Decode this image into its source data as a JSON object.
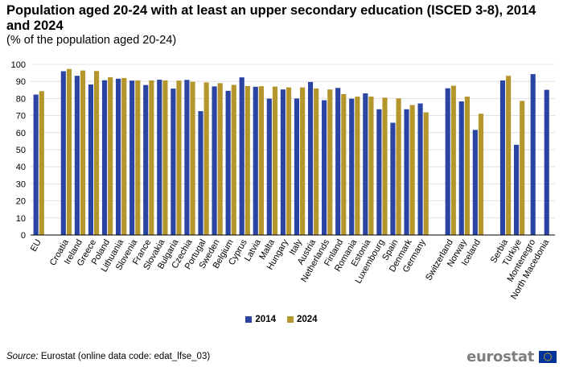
{
  "title": "Population aged 20-24 with at least an upper secondary education (ISCED 3-8), 2014 and 2024",
  "subtitle": "(% of the population aged 20-24)",
  "source_label": "Source:",
  "source_text": " Eurostat (online data code: edat_lfse_03)",
  "logo_text": "eurostat",
  "colors": {
    "series_2014": "#2a44a4",
    "series_2024": "#b5962c",
    "grid": "#d9d9d9"
  },
  "chart_data": {
    "type": "bar",
    "categories": [
      "EU",
      "Croatia",
      "Ireland",
      "Greece",
      "Poland",
      "Lithuania",
      "Slovenia",
      "France",
      "Slovakia",
      "Bulgaria",
      "Czechia",
      "Portugal",
      "Sweden",
      "Belgium",
      "Cyprus",
      "Latvia",
      "Malta",
      "Hungary",
      "Italy",
      "Austria",
      "Netherlands",
      "Finland",
      "Romania",
      "Estonia",
      "Luxembourg",
      "Spain",
      "Denmark",
      "Germany",
      "Switzerland",
      "Norway",
      "Iceland",
      "Serbia",
      "Türkiye",
      "Montenegro",
      "North Macedonia"
    ],
    "groups": [
      1,
      27,
      3,
      4
    ],
    "series": [
      {
        "name": "2014",
        "color": "#2a44a4",
        "values": [
          82.3,
          96.0,
          93.3,
          88.2,
          90.7,
          91.6,
          90.5,
          87.9,
          91.0,
          85.8,
          90.9,
          72.6,
          87.1,
          84.5,
          92.4,
          86.9,
          79.9,
          85.3,
          80.0,
          89.7,
          79.0,
          86.2,
          79.9,
          83.0,
          73.7,
          65.8,
          73.7,
          77.1,
          86.0,
          78.3,
          61.6,
          90.6,
          52.9,
          94.3,
          85.1
        ]
      },
      {
        "name": "2024",
        "color": "#b5962c",
        "values": [
          84.3,
          97.3,
          96.4,
          96.1,
          92.5,
          92.0,
          90.6,
          90.6,
          90.6,
          90.5,
          89.8,
          89.4,
          89.0,
          88.0,
          87.3,
          87.2,
          87.0,
          86.5,
          86.5,
          85.9,
          85.3,
          82.6,
          81.1,
          81.1,
          80.5,
          80.1,
          76.2,
          71.9,
          87.5,
          81.1,
          71.1,
          93.3,
          78.6,
          null,
          null
        ]
      }
    ],
    "ylim": [
      0,
      100
    ],
    "yticks": [
      0,
      10,
      20,
      30,
      40,
      50,
      60,
      70,
      80,
      90,
      100
    ],
    "grid": true,
    "legend_position": "bottom-center"
  }
}
